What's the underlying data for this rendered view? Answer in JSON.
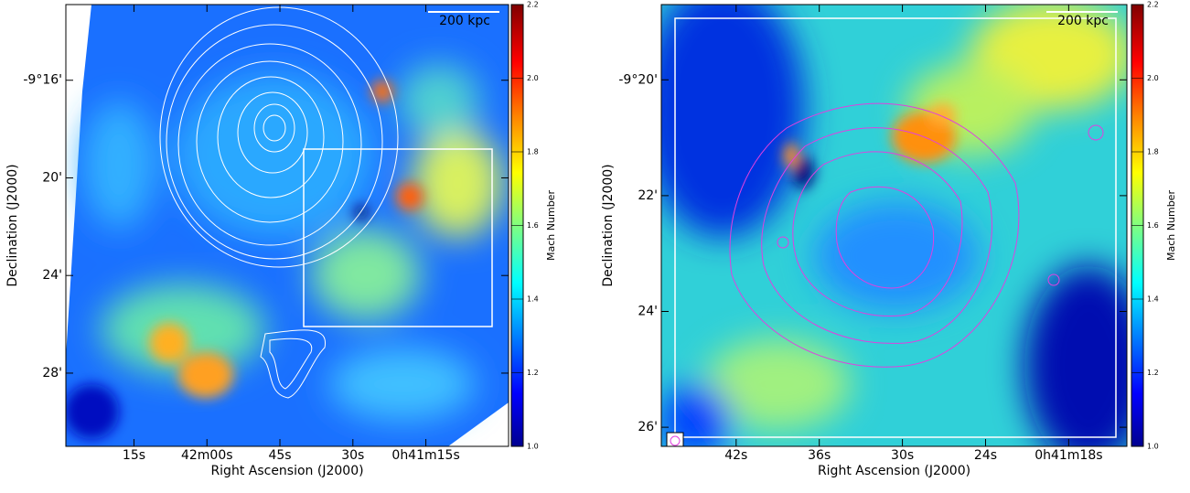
{
  "chart_data": [
    {
      "type": "image",
      "xlabel": "Right Ascension (J2000)",
      "ylabel": "Declination (J2000)",
      "scalebar": "200 kpc",
      "xlim": [
        2549,
        2458
      ],
      "ylim": [
        -571,
        -552.9
      ],
      "xticks": [
        {
          "value": 2535,
          "label": "15s"
        },
        {
          "value": 2520,
          "label": "42m00s"
        },
        {
          "value": 2505,
          "label": "45s"
        },
        {
          "value": 2490,
          "label": "30s"
        },
        {
          "value": 2475,
          "label": "0h41m15s"
        }
      ],
      "yticks": [
        {
          "value": -556,
          "label": "-9°16'"
        },
        {
          "value": -560,
          "label": "20'"
        },
        {
          "value": -564,
          "label": "24'"
        },
        {
          "value": -568,
          "label": "28'"
        }
      ],
      "colorbar": {
        "label": "Mach Number",
        "lim": [
          1,
          2.2
        ],
        "ticks": [
          {
            "value": 1,
            "label": "1.0"
          },
          1.2,
          1.4,
          1.6,
          1.8,
          {
            "value": 2,
            "label": "2.0"
          },
          2.2
        ]
      }
    },
    {
      "type": "image",
      "xlabel": "Right Ascension (J2000)",
      "ylabel": "Declination (J2000)",
      "scalebar": "200 kpc",
      "xlim": [
        2507.4,
        2473.8
      ],
      "ylim": [
        -566.33,
        -558.7
      ],
      "xticks": [
        {
          "value": 2502,
          "label": "42s"
        },
        {
          "value": 2496,
          "label": "36s"
        },
        {
          "value": 2490,
          "label": "30s"
        },
        {
          "value": 2484,
          "label": "24s"
        },
        {
          "value": 2478,
          "label": "0h41m18s"
        }
      ],
      "yticks": [
        {
          "value": -560,
          "label": "-9°20'"
        },
        {
          "value": -562,
          "label": "22'"
        },
        {
          "value": -564,
          "label": "24'"
        },
        {
          "value": -566,
          "label": "26'"
        }
      ],
      "colorbar": {
        "label": "Mach Number",
        "lim": [
          1,
          2.2
        ],
        "ticks": [
          {
            "value": 1,
            "label": "1.0"
          },
          1.2,
          1.4,
          1.6,
          1.8,
          {
            "value": 2,
            "label": "2.0"
          },
          2.2
        ]
      }
    }
  ]
}
